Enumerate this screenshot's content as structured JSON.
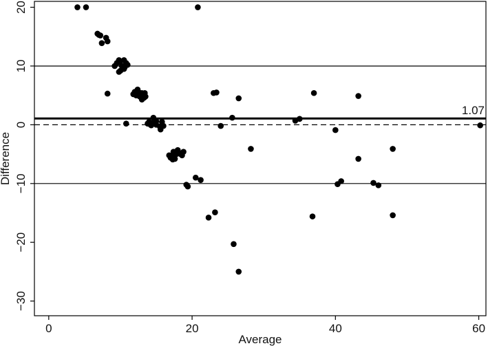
{
  "chart_data": {
    "type": "scatter",
    "title": "",
    "xlabel": "Average",
    "ylabel": "Difference",
    "xlim": [
      -2,
      61
    ],
    "ylim": [
      -32.5,
      21
    ],
    "xticks": [
      0,
      20,
      40,
      60
    ],
    "xtick_labels": [
      "0",
      "20",
      "40",
      "60"
    ],
    "yticks": [
      -30,
      -20,
      -10,
      0,
      10,
      20
    ],
    "ytick_labels": [
      "−30",
      "−20",
      "−10",
      "0",
      "10",
      "20"
    ],
    "grid": false,
    "reference_lines": [
      {
        "name": "mean",
        "y": 1.07,
        "style": "solid-thick",
        "label": "1.07"
      },
      {
        "name": "zero",
        "y": 0,
        "style": "dashed"
      },
      {
        "name": "upper",
        "y": 10,
        "style": "solid"
      },
      {
        "name": "lower",
        "y": -10,
        "style": "solid"
      }
    ],
    "points": [
      [
        4.0,
        20.0
      ],
      [
        5.2,
        20.0
      ],
      [
        20.8,
        20.0
      ],
      [
        6.8,
        15.5
      ],
      [
        7.0,
        15.3
      ],
      [
        7.2,
        15.2
      ],
      [
        8.0,
        14.8
      ],
      [
        8.2,
        14.2
      ],
      [
        7.4,
        13.9
      ],
      [
        9.2,
        10.0
      ],
      [
        9.5,
        10.5
      ],
      [
        9.8,
        11.0
      ],
      [
        10.0,
        10.8
      ],
      [
        10.2,
        10.0
      ],
      [
        10.5,
        11.0
      ],
      [
        10.6,
        9.8
      ],
      [
        10.8,
        10.5
      ],
      [
        11.0,
        10.2
      ],
      [
        10.0,
        9.2
      ],
      [
        10.3,
        9.5
      ],
      [
        9.8,
        9.0
      ],
      [
        10.5,
        9.5
      ],
      [
        8.2,
        5.3
      ],
      [
        11.8,
        5.2
      ],
      [
        12.0,
        5.6
      ],
      [
        12.2,
        5.0
      ],
      [
        12.4,
        6.0
      ],
      [
        12.6,
        5.5
      ],
      [
        12.8,
        5.2
      ],
      [
        13.0,
        5.4
      ],
      [
        13.2,
        5.0
      ],
      [
        13.4,
        5.4
      ],
      [
        12.7,
        4.8
      ],
      [
        13.0,
        4.3
      ],
      [
        13.3,
        4.6
      ],
      [
        13.5,
        4.8
      ],
      [
        12.2,
        5.5
      ],
      [
        10.8,
        0.2
      ],
      [
        13.8,
        0.2
      ],
      [
        14.0,
        0.5
      ],
      [
        14.2,
        0.0
      ],
      [
        14.4,
        0.3
      ],
      [
        14.6,
        1.2
      ],
      [
        14.8,
        0.2
      ],
      [
        15.0,
        0.0
      ],
      [
        15.5,
        -0.3
      ],
      [
        15.8,
        0.5
      ],
      [
        16.0,
        -0.2
      ],
      [
        15.6,
        -0.8
      ],
      [
        14.3,
        -0.1
      ],
      [
        15.0,
        0.6
      ],
      [
        16.8,
        -5.2
      ],
      [
        17.0,
        -5.6
      ],
      [
        17.2,
        -5.3
      ],
      [
        17.4,
        -4.6
      ],
      [
        17.6,
        -5.8
      ],
      [
        17.8,
        -5.0
      ],
      [
        18.0,
        -4.3
      ],
      [
        18.2,
        -4.8
      ],
      [
        18.4,
        -5.0
      ],
      [
        18.6,
        -5.2
      ],
      [
        18.8,
        -4.6
      ],
      [
        17.3,
        -5.9
      ],
      [
        19.2,
        -10.2
      ],
      [
        19.4,
        -10.5
      ],
      [
        20.5,
        -9.0
      ],
      [
        21.2,
        -9.4
      ],
      [
        23.0,
        5.4
      ],
      [
        23.4,
        5.5
      ],
      [
        24.0,
        -0.2
      ],
      [
        25.6,
        1.2
      ],
      [
        26.5,
        4.5
      ],
      [
        28.2,
        -4.1
      ],
      [
        22.3,
        -15.8
      ],
      [
        23.2,
        -14.9
      ],
      [
        25.8,
        -20.3
      ],
      [
        26.5,
        -25.0
      ],
      [
        34.4,
        0.7
      ],
      [
        35.0,
        1.0
      ],
      [
        37.0,
        5.4
      ],
      [
        36.8,
        -15.6
      ],
      [
        40.0,
        -0.9
      ],
      [
        40.3,
        -10.1
      ],
      [
        40.8,
        -9.6
      ],
      [
        43.2,
        4.9
      ],
      [
        43.2,
        -5.8
      ],
      [
        45.3,
        -9.9
      ],
      [
        46.0,
        -10.3
      ],
      [
        48.0,
        -4.1
      ],
      [
        48.0,
        -15.4
      ],
      [
        60.2,
        -0.1
      ]
    ]
  }
}
